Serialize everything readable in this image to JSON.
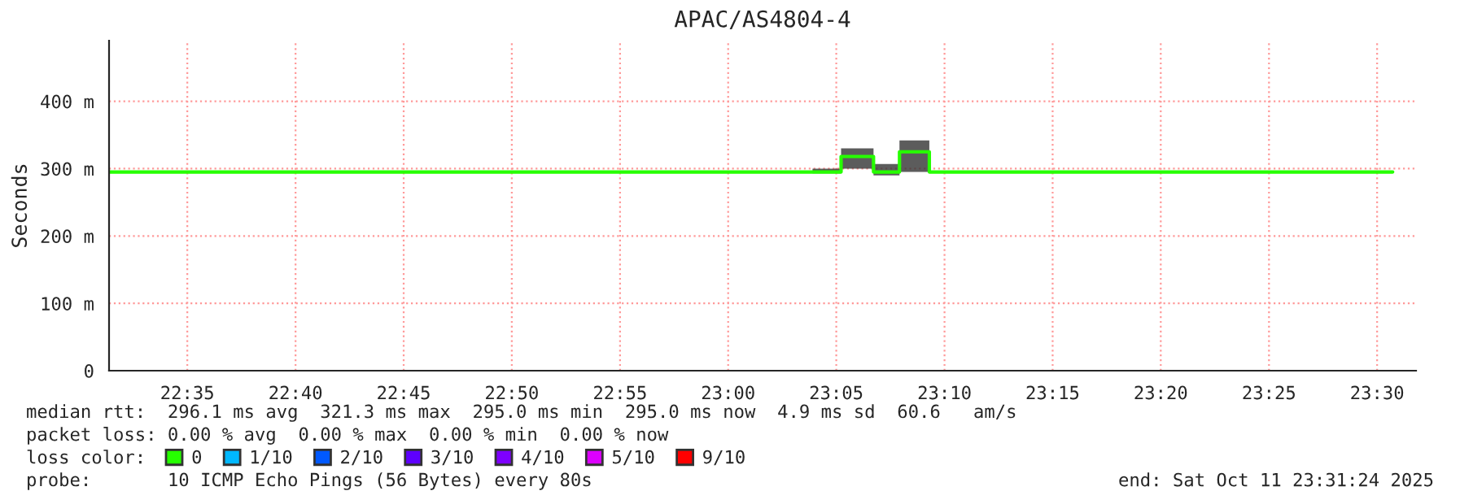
{
  "chart_data": {
    "type": "step",
    "title": "APAC/AS4804-4",
    "ylabel": "Seconds",
    "xlim": [
      22.523,
      23.53
    ],
    "ylim": [
      0,
      490
    ],
    "xticks": [
      {
        "value": 22.5833,
        "label": "22:35"
      },
      {
        "value": 22.6667,
        "label": "22:40"
      },
      {
        "value": 22.75,
        "label": "22:45"
      },
      {
        "value": 22.8333,
        "label": "22:50"
      },
      {
        "value": 22.9167,
        "label": "22:55"
      },
      {
        "value": 23.0,
        "label": "23:00"
      },
      {
        "value": 23.0833,
        "label": "23:05"
      },
      {
        "value": 23.1667,
        "label": "23:10"
      },
      {
        "value": 23.25,
        "label": "23:15"
      },
      {
        "value": 23.3333,
        "label": "23:20"
      },
      {
        "value": 23.4167,
        "label": "23:25"
      },
      {
        "value": 23.5,
        "label": "23:30"
      }
    ],
    "yticks": [
      0,
      {
        "value": 100,
        "label": "100 m"
      },
      {
        "value": 200,
        "label": "200 m"
      },
      {
        "value": 300,
        "label": "300 m"
      },
      {
        "value": 400,
        "label": "400 m"
      }
    ],
    "grid": true,
    "legend": "bottom",
    "legend_title": "loss color:",
    "series": [
      {
        "name": "0",
        "color": "#26ff00",
        "x": [
          22.523,
          23.065,
          23.087,
          23.112,
          23.132,
          23.155,
          23.512
        ],
        "values": [
          295,
          295,
          318,
          295,
          325,
          295,
          295
        ],
        "lower": [
          295,
          293,
          300,
          290,
          295,
          295,
          295
        ],
        "upper": [
          295,
          300,
          330,
          307,
          342,
          295,
          295
        ]
      },
      {
        "name": "1/10",
        "color": "#00b8ff",
        "values": [
          null
        ]
      },
      {
        "name": "2/10",
        "color": "#0059ff",
        "values": [
          null
        ]
      },
      {
        "name": "3/10",
        "color": "#5e00ff",
        "values": [
          null
        ]
      },
      {
        "name": "4/10",
        "color": "#7e00ff",
        "values": [
          null
        ]
      },
      {
        "name": "5/10",
        "color": "#dd00ff",
        "values": [
          null
        ]
      },
      {
        "name": "9/10",
        "color": "#ff0000",
        "values": [
          null
        ]
      }
    ],
    "annotations": [
      "median rtt:  296.1 ms avg  321.3 ms max  295.0 ms min  295.0 ms now  4.9 ms sd  60.6   am/s",
      "packet loss: 0.00 % avg  0.00 % max  0.00 % min  0.00 % now",
      "probe:       10 ICMP Echo Pings (56 Bytes) every 80s",
      "end: Sat Oct 11 23:31:24 2025"
    ]
  }
}
